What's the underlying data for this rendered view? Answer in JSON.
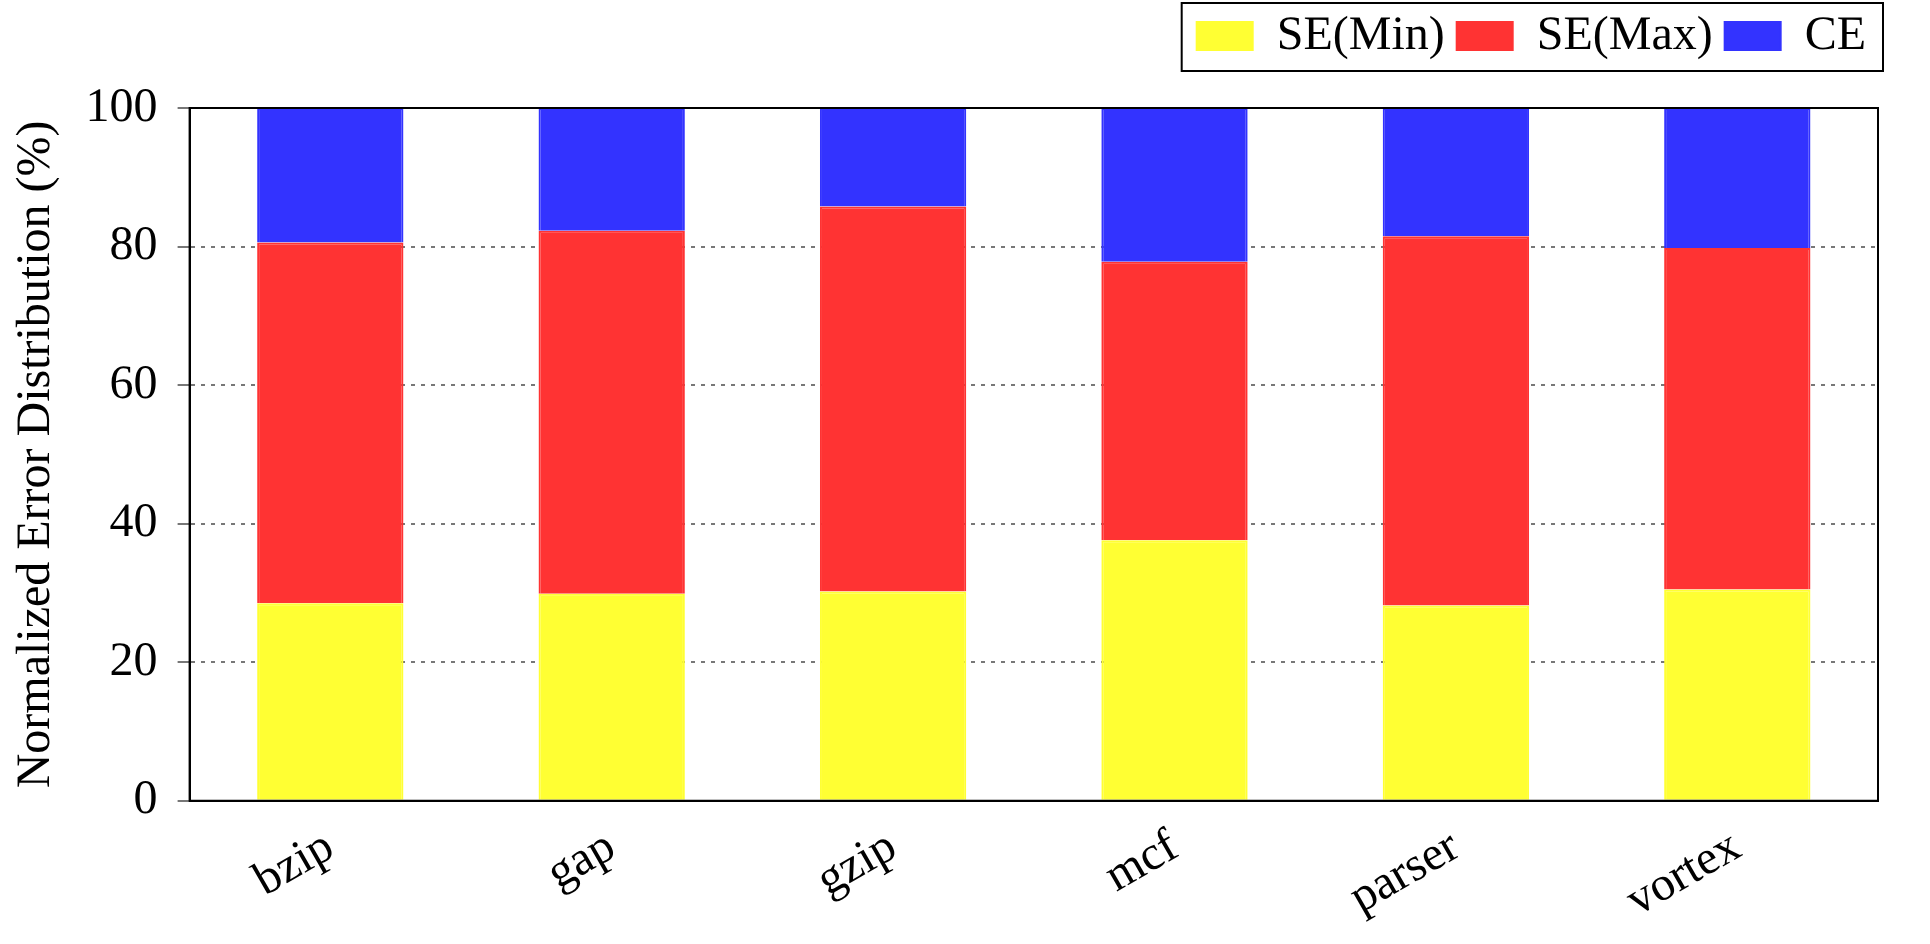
{
  "chart_data": {
    "type": "bar",
    "stacked": true,
    "ylabel": "Normalized Error Distribution (%)",
    "categories": [
      "bzip",
      "gap",
      "gzip",
      "mcf",
      "parser",
      "vortex"
    ],
    "series": [
      {
        "name": "SE(Min)",
        "color": "#ffff33",
        "values": [
          28.5,
          29.9,
          30.2,
          37.6,
          28.2,
          30.5
        ]
      },
      {
        "name": "SE(Max)",
        "color": "#ff3333",
        "values": [
          52.1,
          52.4,
          55.6,
          40.2,
          53.3,
          49.3
        ]
      },
      {
        "name": "CE",
        "color": "#3333ff",
        "values": [
          19.4,
          17.7,
          14.2,
          22.2,
          18.5,
          20.2
        ]
      }
    ],
    "ylim": [
      0,
      100
    ],
    "yticks": [
      0,
      20,
      40,
      60,
      80,
      100
    ],
    "grid": "y",
    "legend": "top right"
  }
}
